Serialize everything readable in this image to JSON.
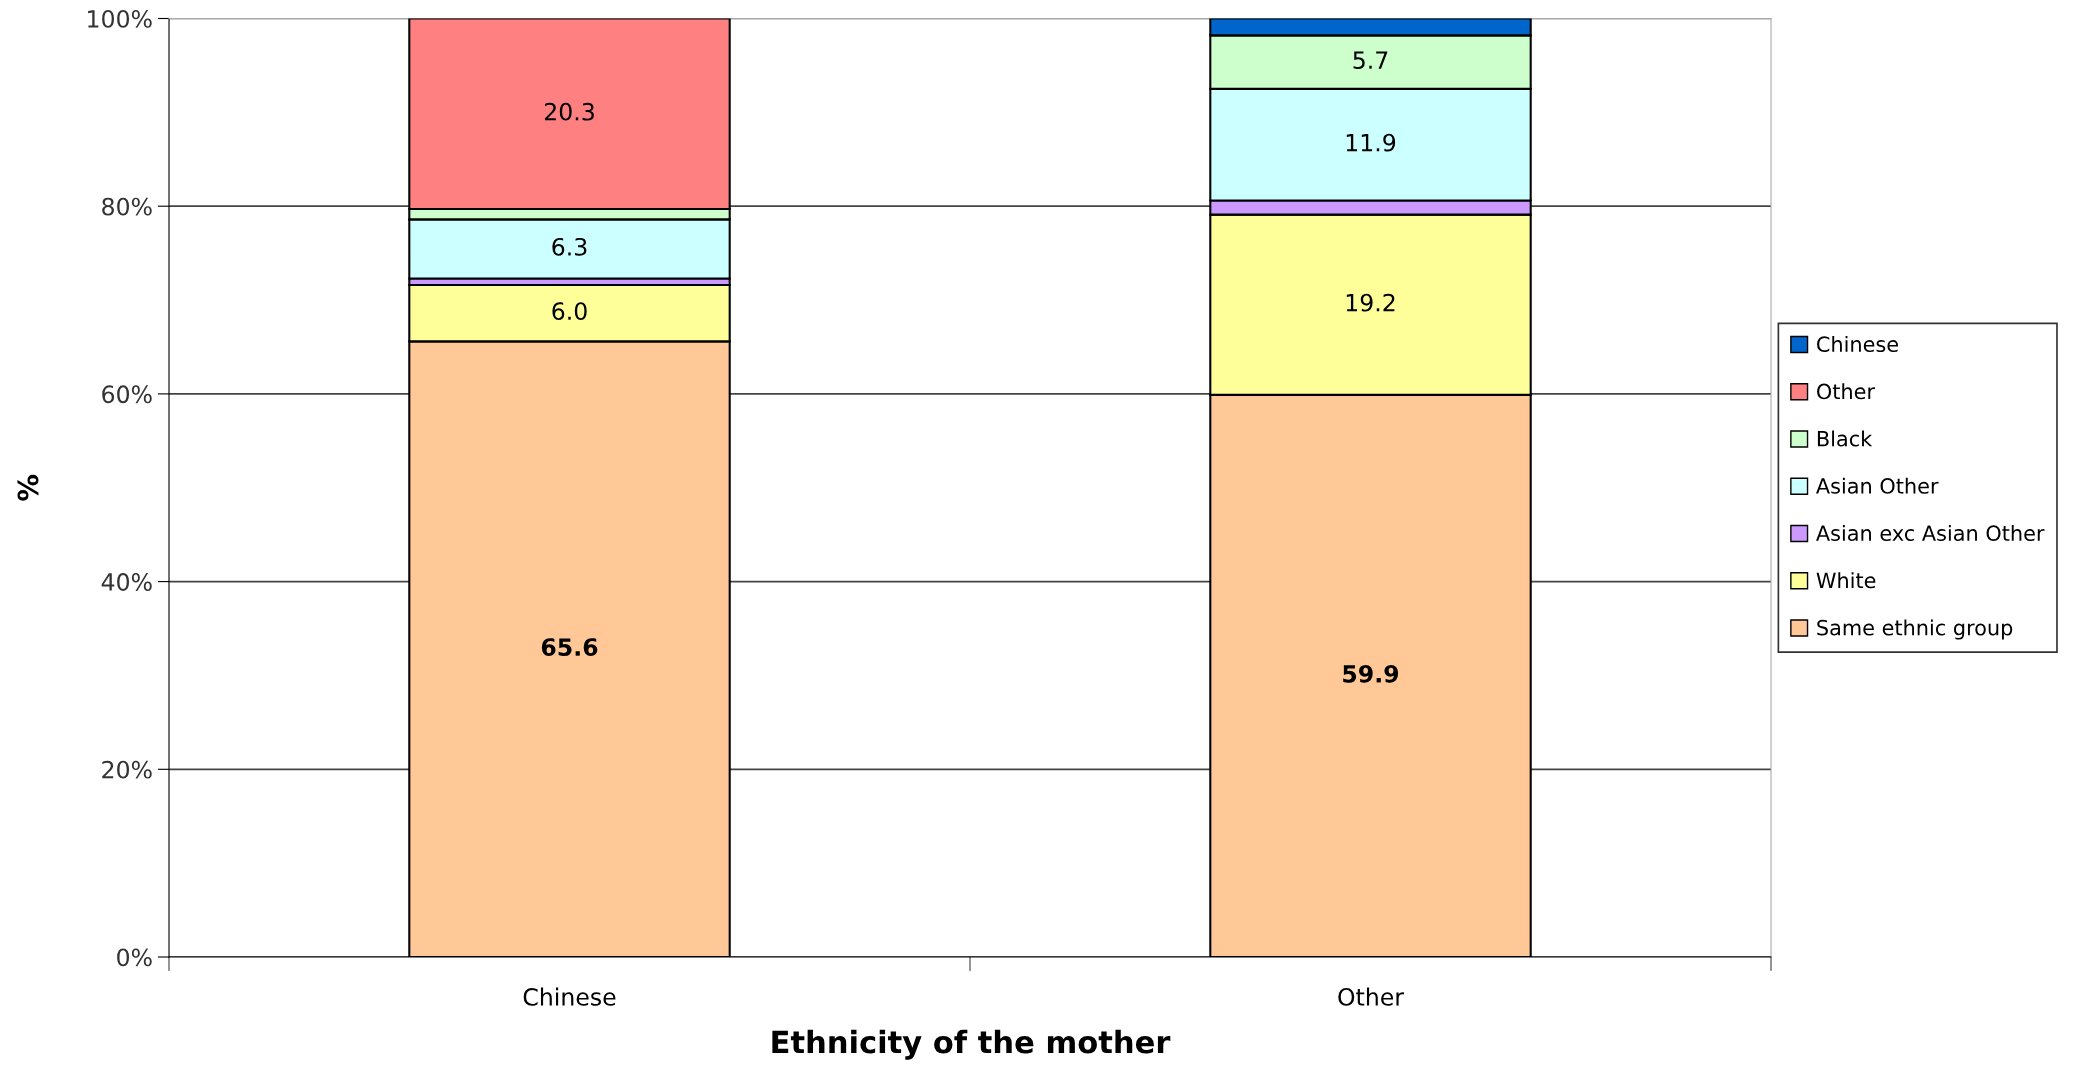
{
  "chart_data": {
    "type": "bar",
    "stacked": true,
    "xlabel": "Ethnicity of the mother",
    "ylabel": "%",
    "categories": [
      "Chinese",
      "Other"
    ],
    "ylim": [
      0,
      100
    ],
    "yticks": [
      {
        "value": 0,
        "label": "0%"
      },
      {
        "value": 20,
        "label": "20%"
      },
      {
        "value": 40,
        "label": "40%"
      },
      {
        "value": 60,
        "label": "60%"
      },
      {
        "value": 80,
        "label": "80%"
      },
      {
        "value": 100,
        "label": "100%"
      }
    ],
    "grid": "y",
    "legend": "right",
    "series": [
      {
        "name": "Same ethnic group",
        "color": "#ffc896",
        "values": [
          65.6,
          59.9
        ],
        "value_labels": [
          "65.6",
          "59.9"
        ]
      },
      {
        "name": "White",
        "color": "#ffff99",
        "values": [
          6.0,
          19.2
        ],
        "value_labels": [
          "6.0",
          "19.2"
        ]
      },
      {
        "name": "Asian exc Asian Other",
        "color": "#cc99ff",
        "values": [
          0.7,
          1.5
        ],
        "value_labels": [
          null,
          null
        ]
      },
      {
        "name": "Asian Other",
        "color": "#ccffff",
        "values": [
          6.3,
          11.9
        ],
        "value_labels": [
          "6.3",
          "11.9"
        ]
      },
      {
        "name": "Black",
        "color": "#ccffcc",
        "values": [
          1.1,
          5.7
        ],
        "value_labels": [
          null,
          "5.7"
        ]
      },
      {
        "name": "Other",
        "color": "#ff8080",
        "values": [
          20.3,
          null
        ],
        "value_labels": [
          "20.3",
          null
        ]
      },
      {
        "name": "Chinese",
        "color": "#0066cc",
        "values": [
          null,
          1.8
        ],
        "value_labels": [
          null,
          null
        ]
      }
    ]
  }
}
